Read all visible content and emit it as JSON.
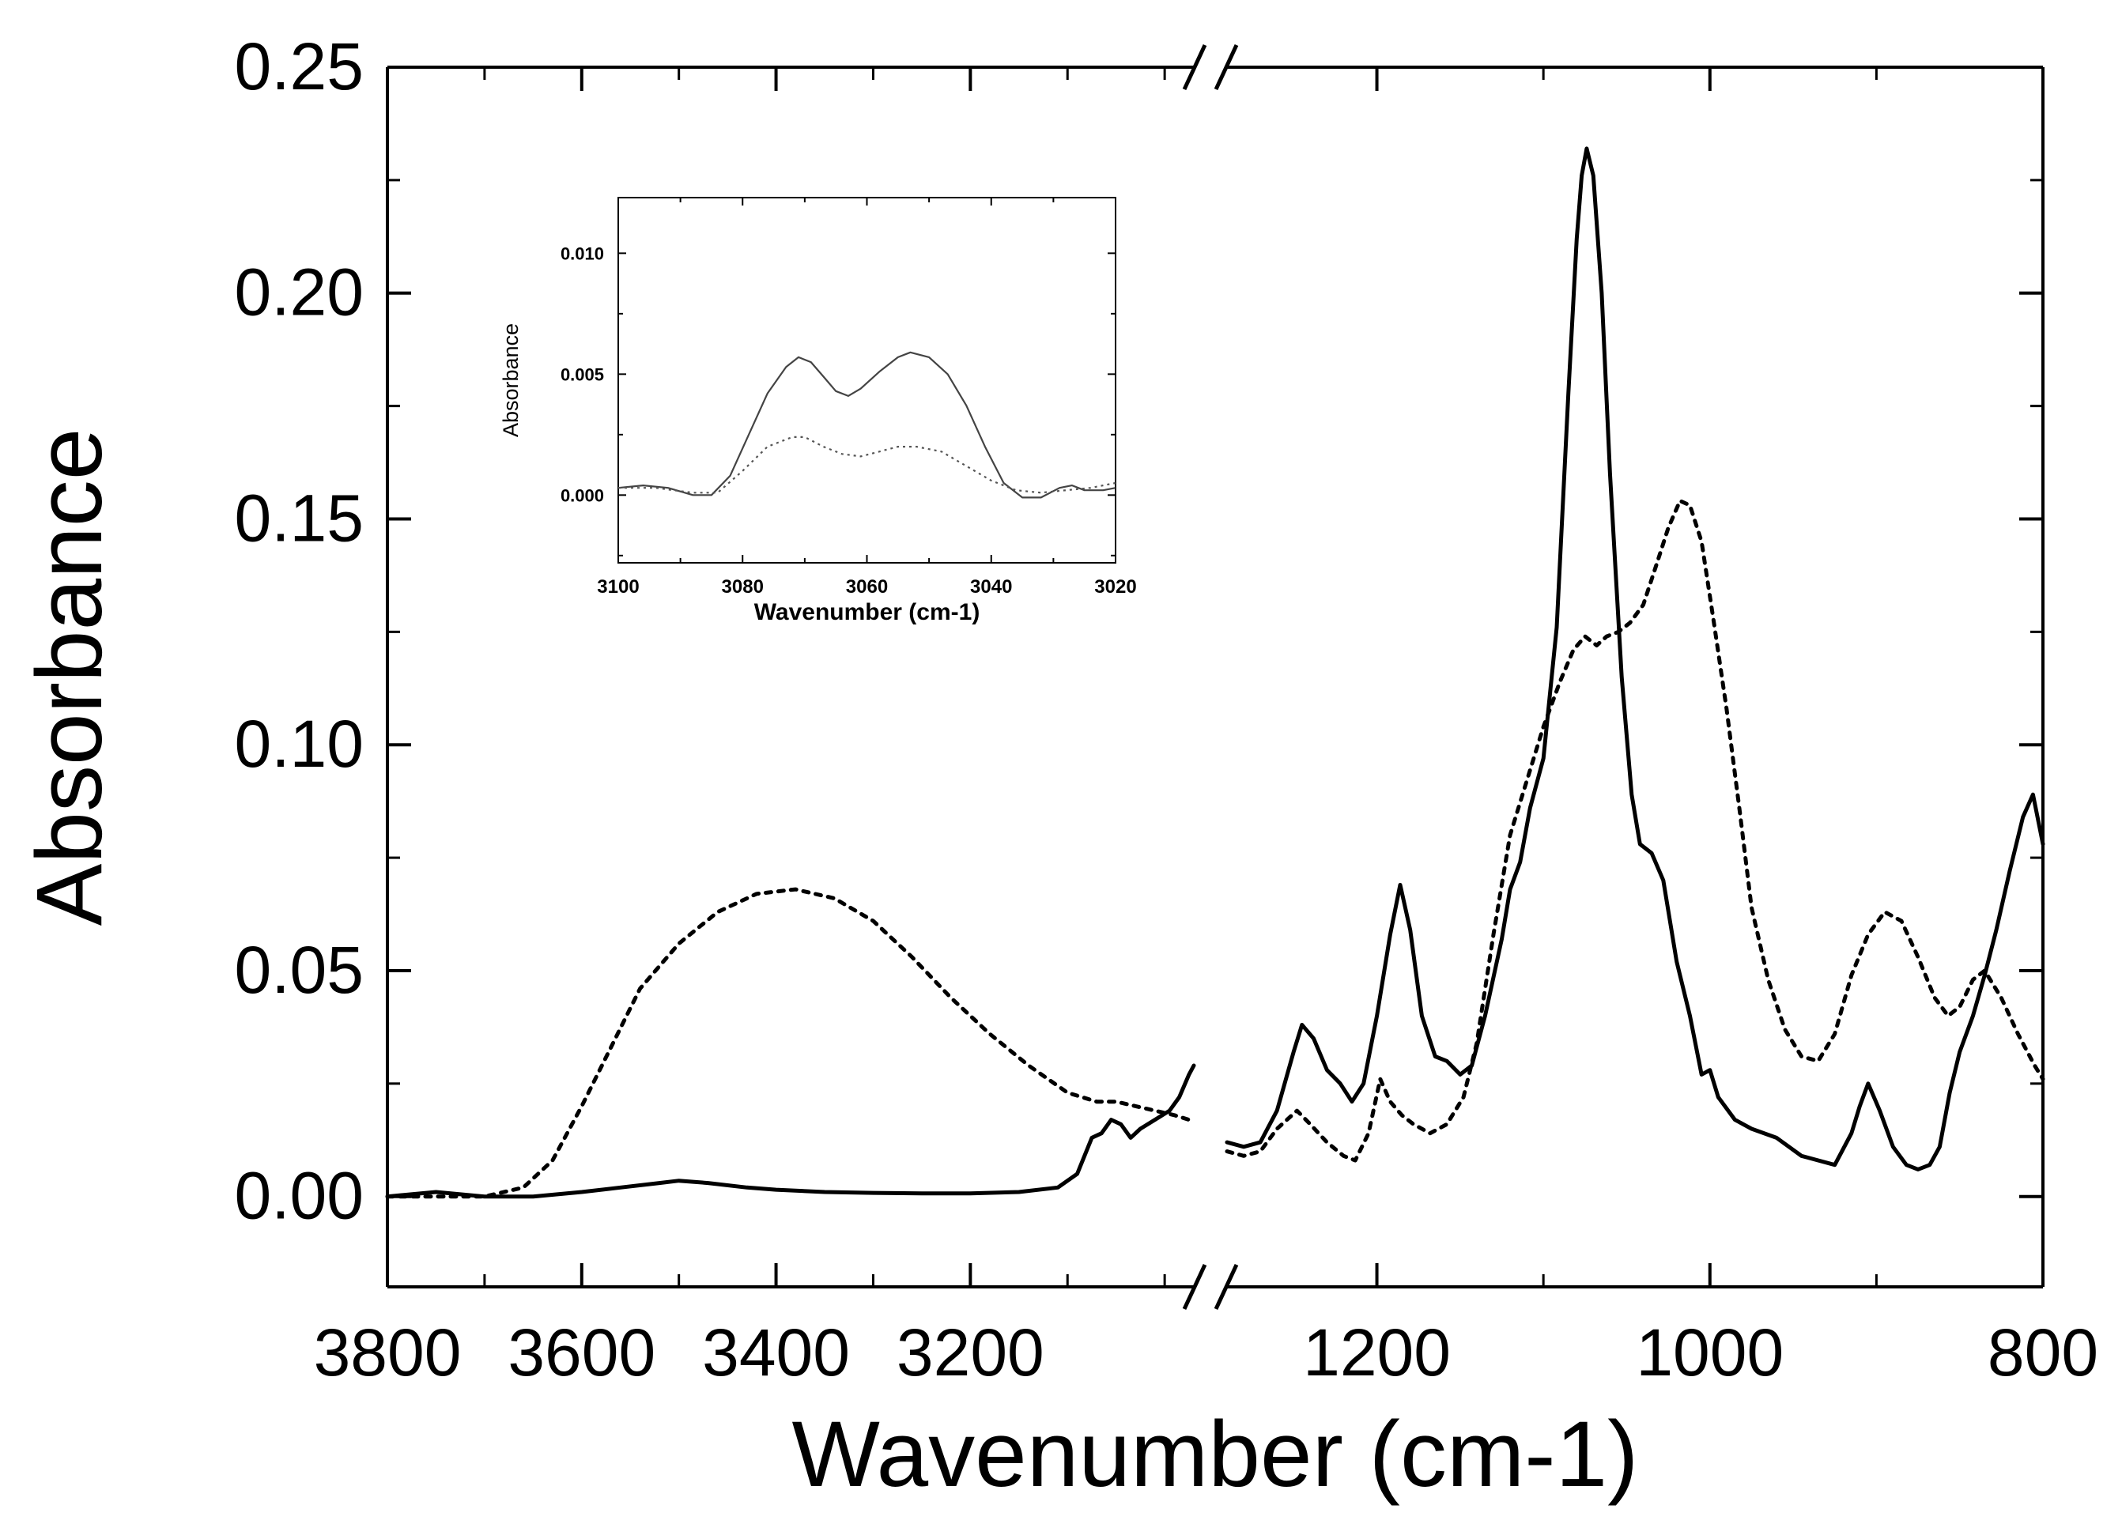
{
  "chart_data": [
    {
      "id": "main",
      "type": "line",
      "xlabel": "Wavenumber (cm-1)",
      "ylabel": "Absorbance",
      "ylim": [
        -0.02,
        0.25
      ],
      "y_ticks": [
        0.0,
        0.05,
        0.1,
        0.15,
        0.2,
        0.25
      ],
      "y_tick_labels": [
        "0.00",
        "0.05",
        "0.10",
        "0.15",
        "0.20",
        "0.25"
      ],
      "axis_break": true,
      "x_segments": [
        {
          "xlim": [
            3800,
            2970
          ],
          "ticks": [
            3800,
            3600,
            3400,
            3200
          ],
          "tick_labels": [
            "3800",
            "3600",
            "3400",
            "3200"
          ]
        },
        {
          "xlim": [
            1290,
            800
          ],
          "ticks": [
            1200,
            1000,
            800
          ],
          "tick_labels": [
            "1200",
            "1000",
            "800"
          ]
        }
      ],
      "grid": false,
      "series": [
        {
          "style": "solid",
          "segments": [
            [
              [
                3800,
                0.0
              ],
              [
                3750,
                0.001
              ],
              [
                3700,
                0.0
              ],
              [
                3650,
                0.0
              ],
              [
                3600,
                0.001
              ],
              [
                3560,
                0.002
              ],
              [
                3520,
                0.003
              ],
              [
                3500,
                0.0035
              ],
              [
                3470,
                0.003
              ],
              [
                3430,
                0.002
              ],
              [
                3400,
                0.0015
              ],
              [
                3350,
                0.001
              ],
              [
                3300,
                0.0008
              ],
              [
                3250,
                0.0007
              ],
              [
                3200,
                0.0007
              ],
              [
                3150,
                0.001
              ],
              [
                3110,
                0.002
              ],
              [
                3090,
                0.005
              ],
              [
                3075,
                0.013
              ],
              [
                3065,
                0.014
              ],
              [
                3055,
                0.017
              ],
              [
                3045,
                0.016
              ],
              [
                3035,
                0.013
              ],
              [
                3025,
                0.015
              ],
              [
                3010,
                0.017
              ],
              [
                2995,
                0.019
              ],
              [
                2985,
                0.022
              ],
              [
                2975,
                0.027
              ],
              [
                2970,
                0.029
              ]
            ],
            [
              [
                1290,
                0.012
              ],
              [
                1280,
                0.011
              ],
              [
                1270,
                0.012
              ],
              [
                1260,
                0.019
              ],
              [
                1250,
                0.032
              ],
              [
                1245,
                0.038
              ],
              [
                1238,
                0.035
              ],
              [
                1230,
                0.028
              ],
              [
                1222,
                0.025
              ],
              [
                1215,
                0.021
              ],
              [
                1208,
                0.025
              ],
              [
                1200,
                0.04
              ],
              [
                1192,
                0.058
              ],
              [
                1186,
                0.069
              ],
              [
                1180,
                0.059
              ],
              [
                1173,
                0.04
              ],
              [
                1165,
                0.031
              ],
              [
                1158,
                0.03
              ],
              [
                1150,
                0.027
              ],
              [
                1143,
                0.029
              ],
              [
                1135,
                0.04
              ],
              [
                1125,
                0.057
              ],
              [
                1120,
                0.068
              ],
              [
                1114,
                0.074
              ],
              [
                1108,
                0.086
              ],
              [
                1100,
                0.097
              ],
              [
                1092,
                0.126
              ],
              [
                1085,
                0.178
              ],
              [
                1080,
                0.212
              ],
              [
                1077,
                0.226
              ],
              [
                1074,
                0.232
              ],
              [
                1070,
                0.226
              ],
              [
                1065,
                0.2
              ],
              [
                1060,
                0.16
              ],
              [
                1053,
                0.115
              ],
              [
                1047,
                0.089
              ],
              [
                1042,
                0.078
              ],
              [
                1035,
                0.076
              ],
              [
                1028,
                0.07
              ],
              [
                1020,
                0.052
              ],
              [
                1012,
                0.04
              ],
              [
                1005,
                0.027
              ],
              [
                1000,
                0.028
              ],
              [
                995,
                0.022
              ],
              [
                985,
                0.017
              ],
              [
                975,
                0.015
              ],
              [
                960,
                0.013
              ],
              [
                945,
                0.009
              ],
              [
                925,
                0.007
              ],
              [
                915,
                0.014
              ],
              [
                910,
                0.02
              ],
              [
                905,
                0.025
              ],
              [
                898,
                0.019
              ],
              [
                890,
                0.011
              ],
              [
                882,
                0.007
              ],
              [
                875,
                0.006
              ],
              [
                868,
                0.007
              ],
              [
                862,
                0.011
              ],
              [
                856,
                0.023
              ],
              [
                850,
                0.032
              ],
              [
                842,
                0.04
              ],
              [
                835,
                0.049
              ],
              [
                828,
                0.059
              ],
              [
                820,
                0.072
              ],
              [
                812,
                0.084
              ],
              [
                806,
                0.089
              ],
              [
                800,
                0.078
              ]
            ]
          ]
        },
        {
          "style": "dotted",
          "segments": [
            [
              [
                3800,
                0.0
              ],
              [
                3700,
                0.0
              ],
              [
                3660,
                0.002
              ],
              [
                3630,
                0.008
              ],
              [
                3600,
                0.02
              ],
              [
                3570,
                0.033
              ],
              [
                3540,
                0.046
              ],
              [
                3500,
                0.056
              ],
              [
                3460,
                0.063
              ],
              [
                3420,
                0.067
              ],
              [
                3380,
                0.068
              ],
              [
                3340,
                0.066
              ],
              [
                3300,
                0.061
              ],
              [
                3260,
                0.053
              ],
              [
                3220,
                0.044
              ],
              [
                3180,
                0.036
              ],
              [
                3140,
                0.029
              ],
              [
                3100,
                0.023
              ],
              [
                3070,
                0.021
              ],
              [
                3050,
                0.021
              ],
              [
                3030,
                0.02
              ],
              [
                3010,
                0.019
              ],
              [
                2990,
                0.018
              ],
              [
                2975,
                0.017
              ]
            ],
            [
              [
                1290,
                0.01
              ],
              [
                1280,
                0.009
              ],
              [
                1270,
                0.01
              ],
              [
                1260,
                0.015
              ],
              [
                1248,
                0.019
              ],
              [
                1240,
                0.016
              ],
              [
                1230,
                0.012
              ],
              [
                1220,
                0.009
              ],
              [
                1213,
                0.008
              ],
              [
                1205,
                0.014
              ],
              [
                1198,
                0.026
              ],
              [
                1192,
                0.021
              ],
              [
                1185,
                0.018
              ],
              [
                1178,
                0.016
              ],
              [
                1168,
                0.014
              ],
              [
                1158,
                0.016
              ],
              [
                1148,
                0.022
              ],
              [
                1140,
                0.034
              ],
              [
                1130,
                0.058
              ],
              [
                1120,
                0.08
              ],
              [
                1110,
                0.092
              ],
              [
                1100,
                0.104
              ],
              [
                1090,
                0.114
              ],
              [
                1082,
                0.121
              ],
              [
                1075,
                0.124
              ],
              [
                1068,
                0.122
              ],
              [
                1062,
                0.124
              ],
              [
                1055,
                0.125
              ],
              [
                1048,
                0.127
              ],
              [
                1040,
                0.131
              ],
              [
                1032,
                0.14
              ],
              [
                1025,
                0.148
              ],
              [
                1018,
                0.154
              ],
              [
                1012,
                0.153
              ],
              [
                1005,
                0.145
              ],
              [
                998,
                0.128
              ],
              [
                990,
                0.108
              ],
              [
                982,
                0.085
              ],
              [
                975,
                0.064
              ],
              [
                965,
                0.048
              ],
              [
                955,
                0.037
              ],
              [
                945,
                0.031
              ],
              [
                935,
                0.03
              ],
              [
                925,
                0.036
              ],
              [
                915,
                0.049
              ],
              [
                905,
                0.058
              ],
              [
                895,
                0.063
              ],
              [
                885,
                0.061
              ],
              [
                875,
                0.053
              ],
              [
                865,
                0.044
              ],
              [
                857,
                0.04
              ],
              [
                850,
                0.042
              ],
              [
                842,
                0.048
              ],
              [
                835,
                0.05
              ],
              [
                825,
                0.044
              ],
              [
                815,
                0.036
              ],
              [
                805,
                0.029
              ],
              [
                800,
                0.026
              ]
            ]
          ]
        }
      ]
    },
    {
      "id": "inset",
      "type": "line",
      "xlabel": "Wavenumber (cm-1)",
      "ylabel": "Absorbance",
      "xlim": [
        3100,
        3020
      ],
      "ylim": [
        -0.0028,
        0.0123
      ],
      "x_ticks": [
        3100,
        3080,
        3060,
        3040,
        3020
      ],
      "x_tick_labels": [
        "3100",
        "3080",
        "3060",
        "3040",
        "3020"
      ],
      "y_ticks": [
        0.0,
        0.005,
        0.01
      ],
      "y_tick_labels": [
        "0.000",
        "0.005",
        "0.010"
      ],
      "grid": false,
      "series": [
        {
          "style": "solid",
          "points": [
            [
              3100,
              0.0003
            ],
            [
              3096,
              0.0004
            ],
            [
              3092,
              0.0003
            ],
            [
              3088,
              0.0
            ],
            [
              3085,
              0.0
            ],
            [
              3082,
              0.0008
            ],
            [
              3079,
              0.0025
            ],
            [
              3076,
              0.0042
            ],
            [
              3073,
              0.0053
            ],
            [
              3071,
              0.0057
            ],
            [
              3069,
              0.0055
            ],
            [
              3067,
              0.0049
            ],
            [
              3065,
              0.0043
            ],
            [
              3063,
              0.0041
            ],
            [
              3061,
              0.0044
            ],
            [
              3058,
              0.0051
            ],
            [
              3055,
              0.0057
            ],
            [
              3053,
              0.0059
            ],
            [
              3050,
              0.0057
            ],
            [
              3047,
              0.005
            ],
            [
              3044,
              0.0037
            ],
            [
              3041,
              0.002
            ],
            [
              3038,
              0.0005
            ],
            [
              3035,
              -0.0001
            ],
            [
              3032,
              -0.0001
            ],
            [
              3029,
              0.0003
            ],
            [
              3027,
              0.0004
            ],
            [
              3025,
              0.0002
            ],
            [
              3022,
              0.0002
            ],
            [
              3020,
              0.0003
            ]
          ]
        },
        {
          "style": "dotted",
          "points": [
            [
              3100,
              0.0003
            ],
            [
              3094,
              0.0003
            ],
            [
              3088,
              0.0001
            ],
            [
              3084,
              0.0001
            ],
            [
              3080,
              0.001
            ],
            [
              3076,
              0.002
            ],
            [
              3072,
              0.0024
            ],
            [
              3070,
              0.0024
            ],
            [
              3067,
              0.002
            ],
            [
              3064,
              0.0017
            ],
            [
              3061,
              0.0016
            ],
            [
              3058,
              0.0018
            ],
            [
              3055,
              0.002
            ],
            [
              3052,
              0.002
            ],
            [
              3048,
              0.0018
            ],
            [
              3044,
              0.0012
            ],
            [
              3040,
              0.0006
            ],
            [
              3036,
              0.0002
            ],
            [
              3032,
              0.0001
            ],
            [
              3028,
              0.0002
            ],
            [
              3024,
              0.0003
            ],
            [
              3020,
              0.0005
            ]
          ]
        }
      ]
    }
  ]
}
